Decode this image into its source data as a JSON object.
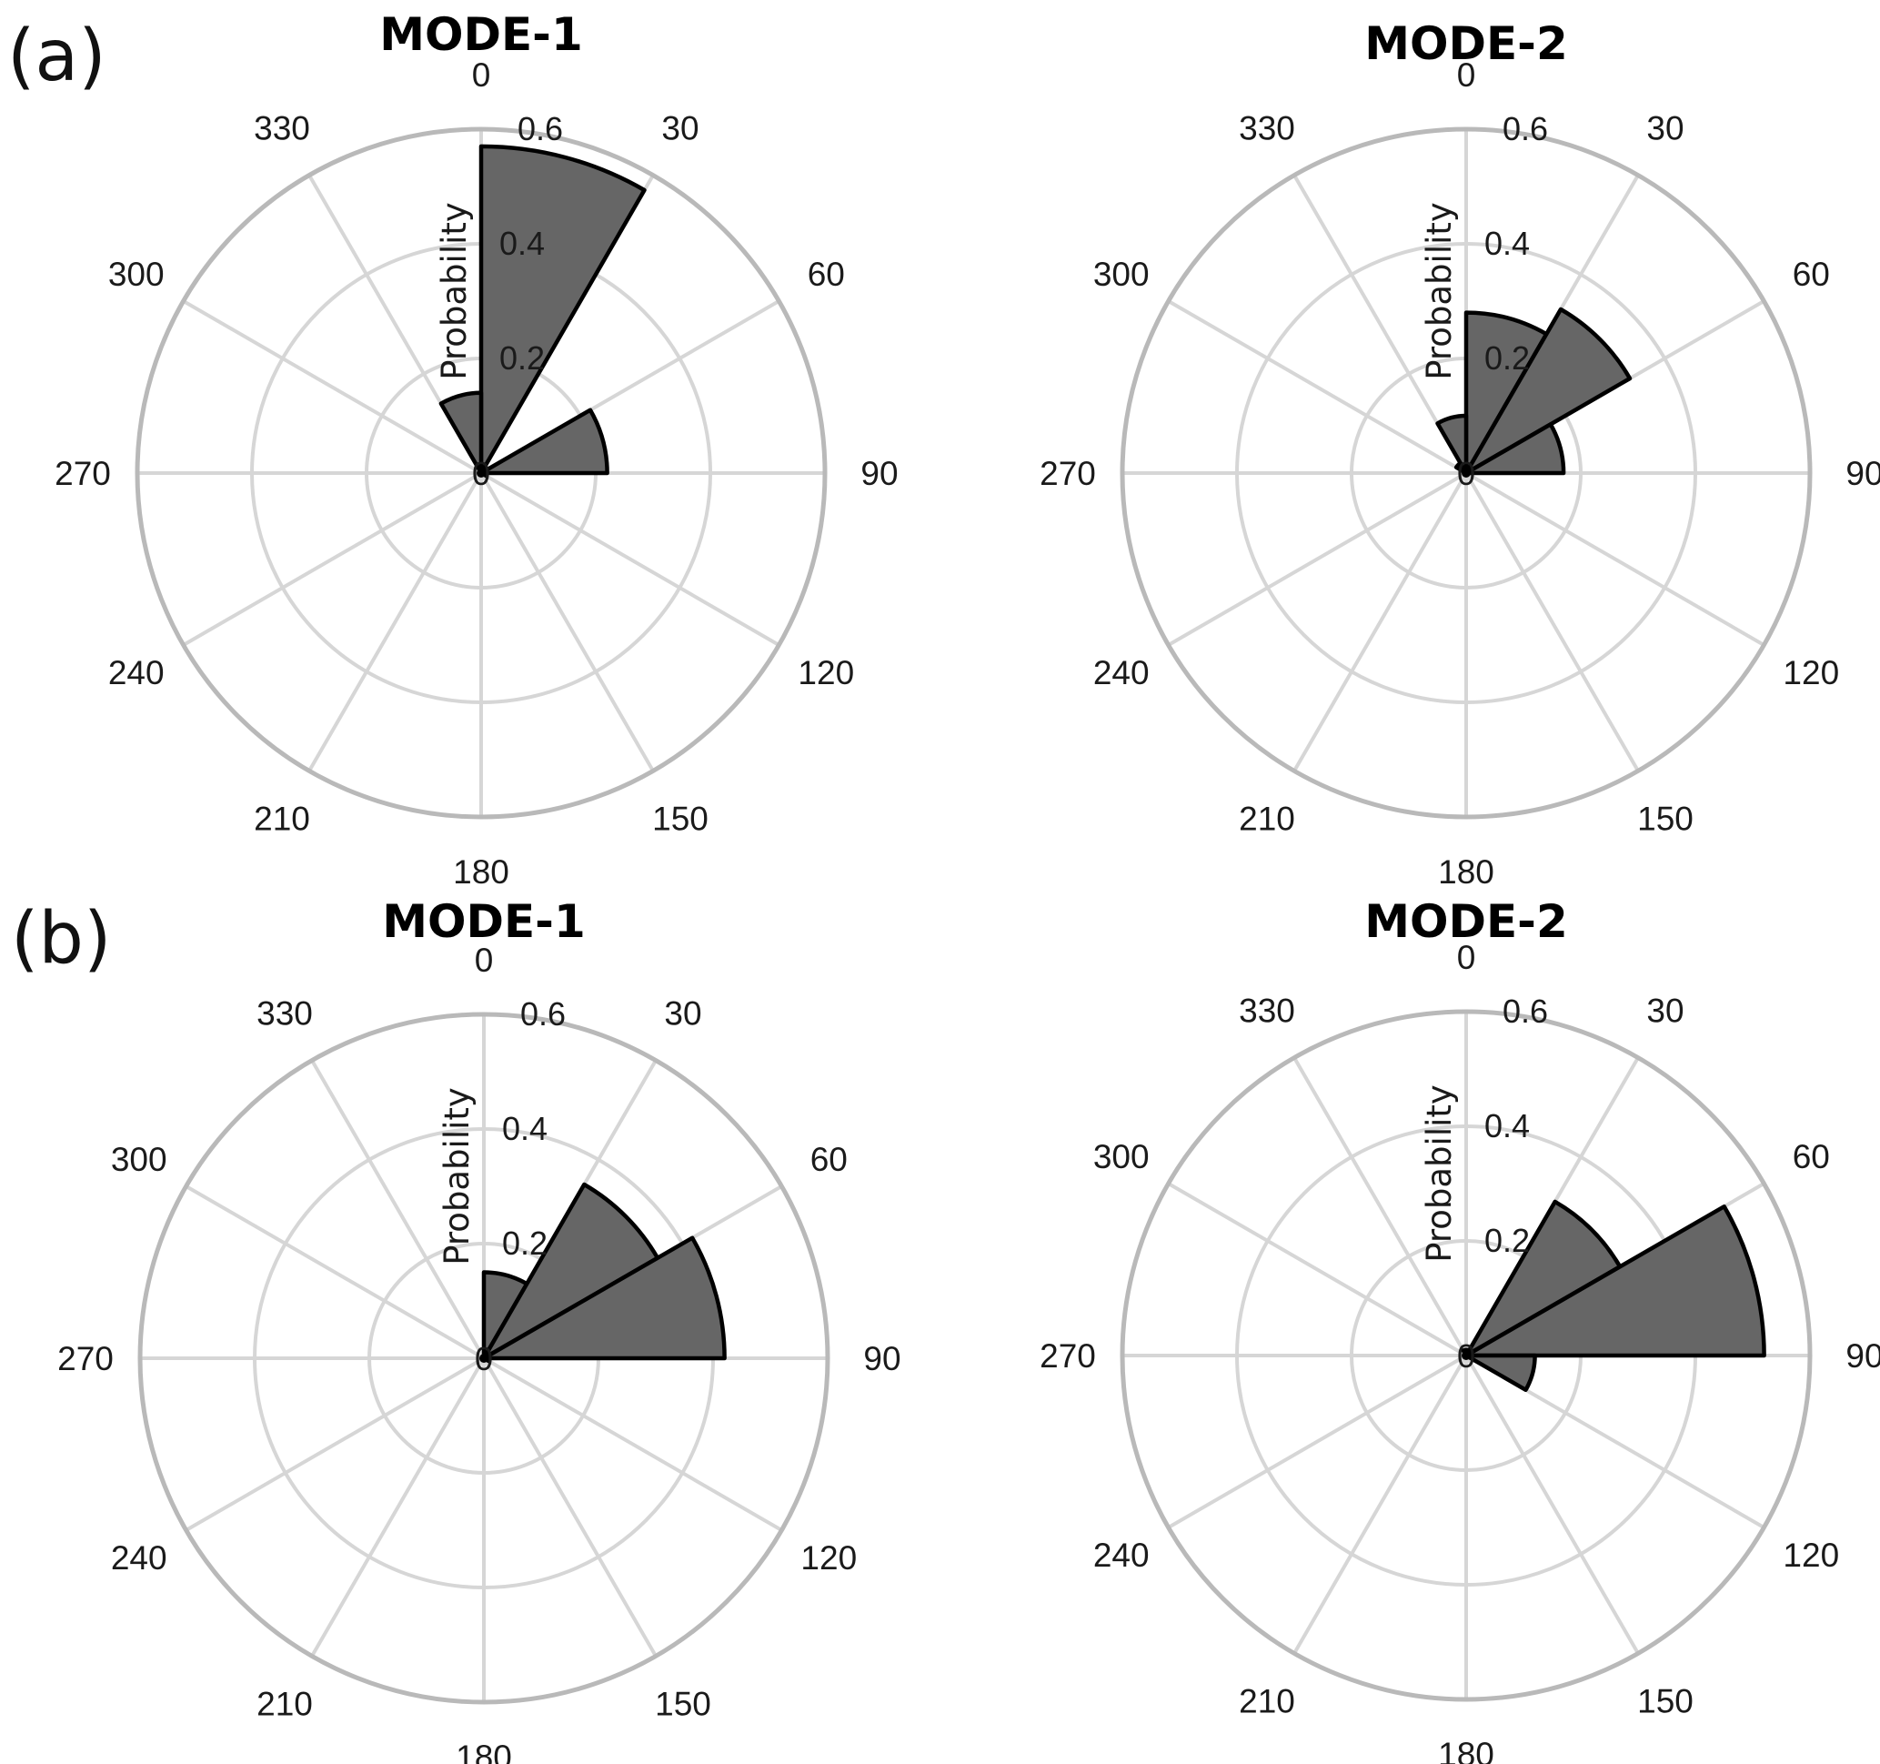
{
  "panels": [
    {
      "label": "(a)"
    },
    {
      "label": "(b)"
    }
  ],
  "chart_data": [
    {
      "type": "polar-bar",
      "panel": "(a)",
      "title": "MODE-1",
      "ylabel": "Probability",
      "theta_ticks": [
        "0",
        "30",
        "60",
        "90",
        "120",
        "150",
        "180",
        "210",
        "240",
        "270",
        "300",
        "330"
      ],
      "r_ticks": [
        "0",
        "0.2",
        "0.4",
        "0.6"
      ],
      "rlim": [
        0,
        0.6
      ],
      "bar_width_deg": 30,
      "bars": [
        {
          "center_deg": 15,
          "value": 0.57
        },
        {
          "center_deg": 45,
          "value": 0.01
        },
        {
          "center_deg": 75,
          "value": 0.22
        },
        {
          "center_deg": 105,
          "value": 0.01
        },
        {
          "center_deg": 345,
          "value": 0.14
        }
      ],
      "bar_color": "#666666"
    },
    {
      "type": "polar-bar",
      "panel": "(a)",
      "title": "MODE-2",
      "ylabel": "Probability",
      "theta_ticks": [
        "0",
        "30",
        "60",
        "90",
        "120",
        "150",
        "180",
        "210",
        "240",
        "270",
        "300",
        "330"
      ],
      "r_ticks": [
        "0",
        "0.2",
        "0.4",
        "0.6"
      ],
      "rlim": [
        0,
        0.6
      ],
      "bar_width_deg": 30,
      "bars": [
        {
          "center_deg": 15,
          "value": 0.28
        },
        {
          "center_deg": 45,
          "value": 0.33
        },
        {
          "center_deg": 75,
          "value": 0.17
        },
        {
          "center_deg": 345,
          "value": 0.1
        },
        {
          "center_deg": 315,
          "value": 0.02
        }
      ],
      "bar_color": "#666666"
    },
    {
      "type": "polar-bar",
      "panel": "(b)",
      "title": "MODE-1",
      "ylabel": "Probability",
      "theta_ticks": [
        "0",
        "30",
        "60",
        "90",
        "120",
        "150",
        "180",
        "210",
        "240",
        "270",
        "300",
        "330"
      ],
      "r_ticks": [
        "0",
        "0.2",
        "0.4",
        "0.6"
      ],
      "rlim": [
        0,
        0.6
      ],
      "bar_width_deg": 30,
      "bars": [
        {
          "center_deg": 15,
          "value": 0.15
        },
        {
          "center_deg": 45,
          "value": 0.35
        },
        {
          "center_deg": 75,
          "value": 0.42
        },
        {
          "center_deg": 105,
          "value": 0.01
        }
      ],
      "bar_color": "#666666"
    },
    {
      "type": "polar-bar",
      "panel": "(b)",
      "title": "MODE-2",
      "ylabel": "Probability",
      "theta_ticks": [
        "0",
        "30",
        "60",
        "90",
        "120",
        "150",
        "180",
        "210",
        "240",
        "270",
        "300",
        "330"
      ],
      "r_ticks": [
        "0",
        "0.2",
        "0.4",
        "0.6"
      ],
      "rlim": [
        0,
        0.6
      ],
      "bar_width_deg": 30,
      "bars": [
        {
          "center_deg": 15,
          "value": 0.01
        },
        {
          "center_deg": 45,
          "value": 0.31
        },
        {
          "center_deg": 75,
          "value": 0.52
        },
        {
          "center_deg": 105,
          "value": 0.12
        },
        {
          "center_deg": 345,
          "value": 0.01
        }
      ],
      "bar_color": "#666666"
    }
  ]
}
